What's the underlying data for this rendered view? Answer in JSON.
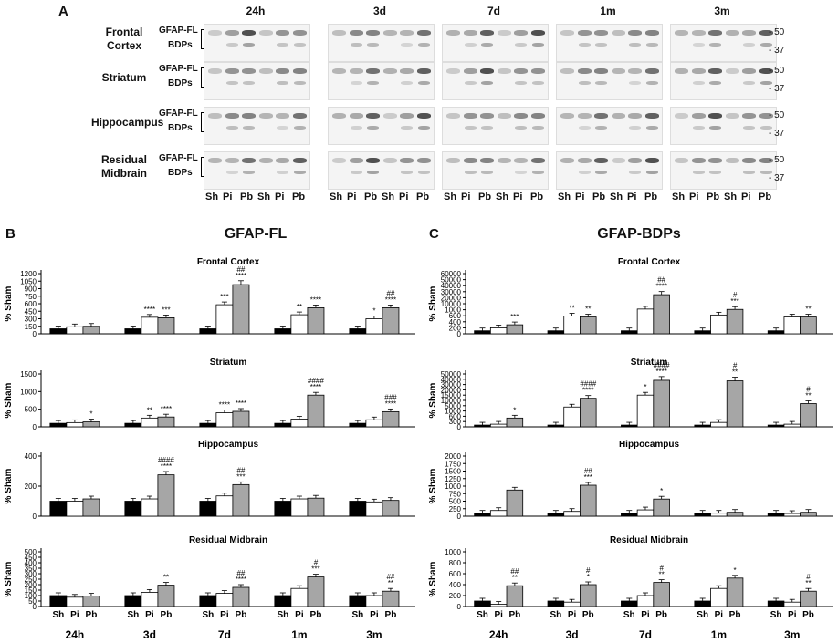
{
  "panels": {
    "A": "A",
    "B": "B",
    "C": "C"
  },
  "blot": {
    "timepoints": [
      "24h",
      "3d",
      "7d",
      "1m",
      "3m"
    ],
    "regions": [
      "Frontal\nCortex",
      "Striatum",
      "Hippocampus",
      "Residual\nMidbrain"
    ],
    "labels": {
      "fl": "GFAP-FL",
      "bdp": "BDPs"
    },
    "lanes": [
      "Sh",
      "Pi",
      "Pb",
      "Sh",
      "Pi",
      "Pb"
    ],
    "mw": [
      "50",
      "37"
    ]
  },
  "figB": {
    "title": "GFAP-FL"
  },
  "figC": {
    "title": "GFAP-BDPs"
  },
  "ylabel": "% Sham",
  "groups": [
    "Sh",
    "Pi",
    "Pb"
  ],
  "colors": {
    "Sh": "#000000",
    "Pi": "#ffffff",
    "Pb": "#a6a6a6"
  },
  "chart_data": [
    {
      "type": "bar",
      "panel": "B",
      "title": "Frontal Cortex",
      "ylabel": "% Sham",
      "categories": [
        "24h",
        "3d",
        "7d",
        "1m",
        "3m"
      ],
      "yticks": [
        0,
        150,
        300,
        450,
        600,
        750,
        900,
        1050,
        1200
      ],
      "ylim": [
        0,
        1200
      ],
      "series": [
        {
          "name": "Sh",
          "values": [
            100,
            100,
            100,
            100,
            100
          ]
        },
        {
          "name": "Pi",
          "values": [
            140,
            330,
            580,
            380,
            300
          ]
        },
        {
          "name": "Pb",
          "values": [
            150,
            320,
            980,
            520,
            520
          ]
        }
      ],
      "annotations": [
        [
          "",
          "",
          ""
        ],
        [
          "",
          "****",
          "***"
        ],
        [
          "",
          "***",
          "##\n****"
        ],
        [
          "",
          "**",
          "****"
        ],
        [
          "",
          "*",
          "##\n****"
        ]
      ]
    },
    {
      "type": "bar",
      "panel": "B",
      "title": "Striatum",
      "ylabel": "% Sham",
      "categories": [
        "24h",
        "3d",
        "7d",
        "1m",
        "3m"
      ],
      "yticks": [
        0,
        500,
        1000,
        1500
      ],
      "ylim": [
        0,
        1500
      ],
      "series": [
        {
          "name": "Sh",
          "values": [
            100,
            100,
            100,
            100,
            100
          ]
        },
        {
          "name": "Pi",
          "values": [
            120,
            250,
            400,
            220,
            200
          ]
        },
        {
          "name": "Pb",
          "values": [
            140,
            280,
            440,
            900,
            430
          ]
        }
      ],
      "annotations": [
        [
          "",
          "",
          "*"
        ],
        [
          "",
          "**",
          "****"
        ],
        [
          "",
          "****",
          "****"
        ],
        [
          "",
          "",
          "####\n****"
        ],
        [
          "",
          "",
          "###\n****"
        ]
      ]
    },
    {
      "type": "bar",
      "panel": "B",
      "title": "Hippocampus",
      "ylabel": "% Sham",
      "categories": [
        "24h",
        "3d",
        "7d",
        "1m",
        "3m"
      ],
      "yticks": [
        0,
        200,
        400
      ],
      "ylim": [
        0,
        400
      ],
      "series": [
        {
          "name": "Sh",
          "values": [
            100,
            100,
            100,
            100,
            100
          ]
        },
        {
          "name": "Pi",
          "values": [
            100,
            115,
            135,
            115,
            95
          ]
        },
        {
          "name": "Pb",
          "values": [
            115,
            275,
            210,
            120,
            105
          ]
        }
      ],
      "annotations": [
        [
          "",
          "",
          ""
        ],
        [
          "",
          "",
          "####\n****"
        ],
        [
          "",
          "",
          "##\n***"
        ],
        [
          "",
          "",
          ""
        ],
        [
          "",
          "",
          ""
        ]
      ]
    },
    {
      "type": "bar",
      "panel": "B",
      "title": "Residual Midbrain",
      "ylabel": "% Sham",
      "categories": [
        "24h",
        "3d",
        "7d",
        "1m",
        "3m"
      ],
      "yticks": [
        0,
        50,
        100,
        150,
        200,
        250,
        300,
        350,
        400,
        450,
        500
      ],
      "ylim": [
        0,
        500
      ],
      "series": [
        {
          "name": "Sh",
          "values": [
            100,
            100,
            100,
            100,
            100
          ]
        },
        {
          "name": "Pi",
          "values": [
            85,
            130,
            120,
            165,
            100
          ]
        },
        {
          "name": "Pb",
          "values": [
            95,
            195,
            175,
            270,
            140
          ]
        }
      ],
      "annotations": [
        [
          "",
          "",
          ""
        ],
        [
          "",
          "",
          "**"
        ],
        [
          "",
          "",
          "##\n****"
        ],
        [
          "",
          "",
          "#\n***"
        ],
        [
          "",
          "",
          "##\n**"
        ]
      ]
    },
    {
      "type": "bar",
      "panel": "C",
      "title": "Frontal Cortex",
      "ylabel": "% Sham",
      "categories": [
        "24h",
        "3d",
        "7d",
        "1m",
        "3m"
      ],
      "yticks": [
        "0",
        "200",
        "400",
        "600",
        "1000",
        "10000",
        "20000",
        "30000",
        "40000",
        "50000",
        "60000"
      ],
      "series": [
        {
          "name": "Sh",
          "values": [
            100,
            100,
            100,
            100,
            100
          ]
        },
        {
          "name": "Pi",
          "values": [
            200,
            590,
            2000,
            650,
            560
          ]
        },
        {
          "name": "Pb",
          "values": [
            300,
            560,
            25000,
            1500,
            560
          ]
        }
      ],
      "annotations": [
        [
          "",
          "",
          "***"
        ],
        [
          "",
          "**",
          "**"
        ],
        [
          "",
          "",
          "##\n****"
        ],
        [
          "",
          "",
          "#\n***"
        ],
        [
          "",
          "",
          "**"
        ]
      ]
    },
    {
      "type": "bar",
      "panel": "C",
      "title": "Striatum",
      "ylabel": "% Sham",
      "categories": [
        "24h",
        "3d",
        "7d",
        "1m",
        "3m"
      ],
      "yticks": [
        "0",
        "300",
        "600",
        "1000",
        "5000",
        "10000",
        "15000",
        "20000",
        "30000",
        "40000",
        "50000"
      ],
      "series": [
        {
          "name": "Sh",
          "values": [
            100,
            100,
            100,
            100,
            100
          ]
        },
        {
          "name": "Pi",
          "values": [
            150,
            4000,
            15000,
            250,
            150
          ]
        },
        {
          "name": "Pb",
          "values": [
            500,
            12000,
            38000,
            37000,
            7000
          ]
        }
      ],
      "annotations": [
        [
          "",
          "",
          "*"
        ],
        [
          "",
          "",
          "####\n****"
        ],
        [
          "",
          "*",
          "####\n****"
        ],
        [
          "",
          "",
          "#\n**"
        ],
        [
          "",
          "",
          "#\n**"
        ]
      ]
    },
    {
      "type": "bar",
      "panel": "C",
      "title": "Hippocampus",
      "ylabel": "% Sham",
      "categories": [
        "24h",
        "3d",
        "7d",
        "1m",
        "3m"
      ],
      "yticks": [
        0,
        250,
        500,
        750,
        1000,
        1250,
        1500,
        1750,
        2000
      ],
      "ylim": [
        0,
        2000
      ],
      "series": [
        {
          "name": "Sh",
          "values": [
            100,
            100,
            100,
            100,
            100
          ]
        },
        {
          "name": "Pi",
          "values": [
            190,
            160,
            210,
            100,
            90
          ]
        },
        {
          "name": "Pb",
          "values": [
            870,
            1030,
            570,
            130,
            130
          ]
        }
      ],
      "annotations": [
        [
          "",
          "",
          ""
        ],
        [
          "",
          "",
          "##\n***"
        ],
        [
          "",
          "",
          "*"
        ],
        [
          "",
          "",
          ""
        ],
        [
          "",
          "",
          ""
        ]
      ]
    },
    {
      "type": "bar",
      "panel": "C",
      "title": "Residual Midbrain",
      "ylabel": "% Sham",
      "categories": [
        "24h",
        "3d",
        "7d",
        "1m",
        "3m"
      ],
      "yticks": [
        0,
        200,
        400,
        600,
        800,
        1000
      ],
      "ylim": [
        0,
        1000
      ],
      "series": [
        {
          "name": "Sh",
          "values": [
            100,
            100,
            100,
            100,
            100
          ]
        },
        {
          "name": "Pi",
          "values": [
            40,
            80,
            200,
            330,
            80
          ]
        },
        {
          "name": "Pb",
          "values": [
            380,
            400,
            440,
            520,
            280
          ]
        }
      ],
      "annotations": [
        [
          "",
          "",
          "##\n**"
        ],
        [
          "",
          "",
          "#\n*"
        ],
        [
          "",
          "",
          "#\n**"
        ],
        [
          "",
          "",
          "*"
        ],
        [
          "",
          "",
          "#\n**"
        ]
      ]
    }
  ]
}
